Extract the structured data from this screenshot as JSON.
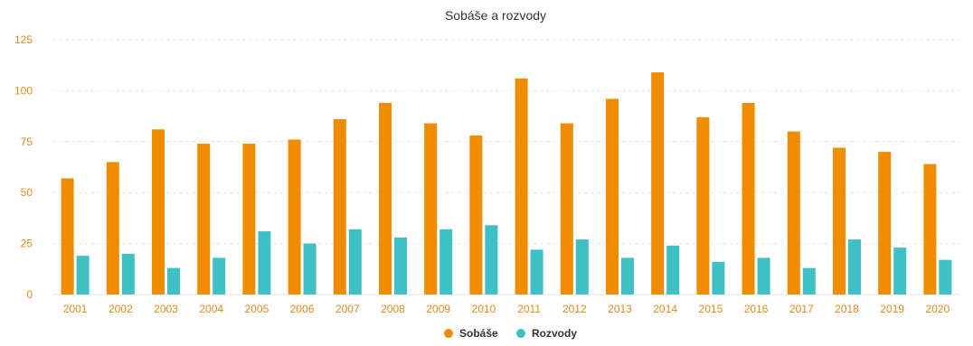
{
  "chart_data": {
    "type": "bar",
    "title": "Sobáše a rozvody",
    "xlabel": "",
    "ylabel": "",
    "ylim": [
      0,
      125
    ],
    "yticks": [
      "0",
      "25",
      "50",
      "75",
      "100",
      "125"
    ],
    "grid": true,
    "legend_position": "bottom-center",
    "categories": [
      "2001",
      "2002",
      "2003",
      "2004",
      "2005",
      "2006",
      "2007",
      "2008",
      "2009",
      "2010",
      "2011",
      "2012",
      "2013",
      "2014",
      "2015",
      "2016",
      "2017",
      "2018",
      "2019",
      "2020"
    ],
    "series": [
      {
        "name": "Sobáše",
        "color": "#f08c00",
        "values": [
          57,
          65,
          81,
          74,
          74,
          76,
          86,
          94,
          84,
          78,
          106,
          84,
          96,
          109,
          87,
          94,
          80,
          72,
          70,
          64
        ]
      },
      {
        "name": "Rozvody",
        "color": "#3fbfc6",
        "values": [
          19,
          20,
          13,
          18,
          31,
          25,
          32,
          28,
          32,
          34,
          22,
          27,
          18,
          24,
          16,
          18,
          13,
          27,
          23,
          17
        ]
      }
    ],
    "tick_color": "#e08a1e",
    "grid_color": "#e6e6e6"
  }
}
